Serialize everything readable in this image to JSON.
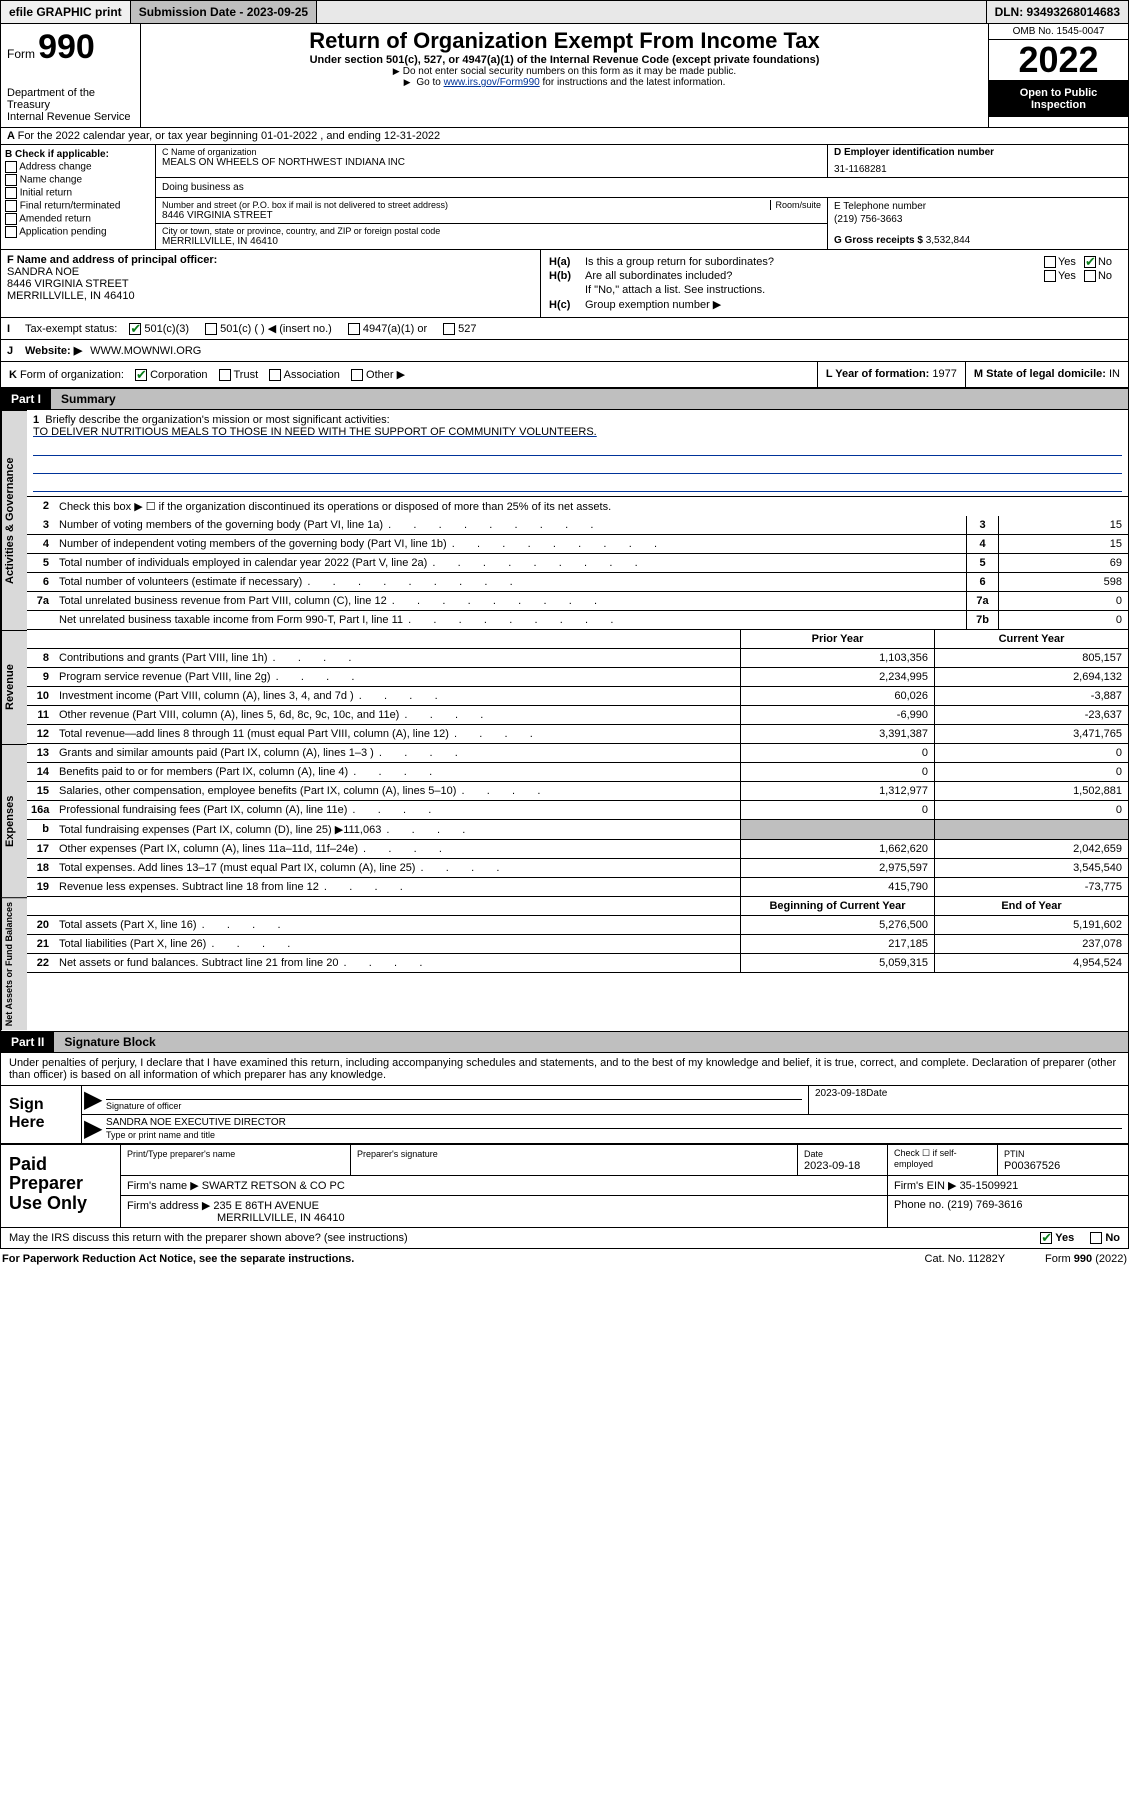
{
  "topbar": {
    "efile": "efile GRAPHIC print",
    "subdate_label": "Submission Date - 2023-09-25",
    "dln": "DLN: 93493268014683"
  },
  "header": {
    "form_prefix": "Form",
    "form_number": "990",
    "dept": "Department of the Treasury",
    "irs": "Internal Revenue Service",
    "title": "Return of Organization Exempt From Income Tax",
    "subtitle": "Under section 501(c), 527, or 4947(a)(1) of the Internal Revenue Code (except private foundations)",
    "note1": "Do not enter social security numbers on this form as it may be made public.",
    "note2_prefix": "Go to ",
    "note2_link": "www.irs.gov/Form990",
    "note2_suffix": " for instructions and the latest information.",
    "omb": "OMB No. 1545-0047",
    "year": "2022",
    "inspection1": "Open to Public",
    "inspection2": "Inspection"
  },
  "row_a": "For the 2022 calendar year, or tax year beginning 01-01-2022    , and ending 12-31-2022",
  "col_b": {
    "hdr": "B Check if applicable:",
    "items": [
      "Address change",
      "Name change",
      "Initial return",
      "Final return/terminated",
      "Amended return",
      "Application pending"
    ]
  },
  "section_c": {
    "name_label": "C Name of organization",
    "name": "MEALS ON WHEELS OF NORTHWEST INDIANA INC",
    "dba": "Doing business as",
    "street_label": "Number and street (or P.O. box if mail is not delivered to street address)",
    "roomsuite": "Room/suite",
    "street": "8446 VIRGINIA STREET",
    "citylabel": "City or town, state or province, country, and ZIP or foreign postal code",
    "city": "MERRILLVILLE, IN   46410"
  },
  "section_d": {
    "ein_label": "D Employer identification number",
    "ein": "31-1168281",
    "phone_label": "E Telephone number",
    "phone": "(219) 756-3663",
    "gross_label": "G Gross receipts $",
    "gross": "3,532,844"
  },
  "section_f": {
    "label": "F Name and address of principal officer:",
    "name": "SANDRA NOE",
    "street": "8446 VIRGINIA STREET",
    "city": "MERRILLVILLE, IN   46410"
  },
  "section_h": {
    "a_label": "H(a)",
    "a_text": "Is this a group return for subordinates?",
    "b_label": "H(b)",
    "b_text": "Are all subordinates included?",
    "b_note": "If \"No,\" attach a list. See instructions.",
    "c_label": "H(c)",
    "c_text": "Group exemption number ▶",
    "yes": "Yes",
    "no": "No"
  },
  "row_i": {
    "label": "I",
    "text": "Tax-exempt status:",
    "opts": [
      "501(c)(3)",
      "501(c) (   ) ◀ (insert no.)",
      "4947(a)(1) or",
      "527"
    ]
  },
  "row_j": {
    "label": "J",
    "text": "Website: ▶",
    "value": "WWW.MOWNWI.ORG"
  },
  "row_k": {
    "label": "K",
    "text": "Form of organization:",
    "opts": [
      "Corporation",
      "Trust",
      "Association",
      "Other ▶"
    ],
    "l_label": "L Year of formation:",
    "l_value": "1977",
    "m_label": "M State of legal domicile:",
    "m_value": "IN"
  },
  "part1": {
    "num": "Part I",
    "title": "Summary",
    "briefly_n": "1",
    "briefly": "Briefly describe the organization's mission or most significant activities:",
    "mission": "TO DELIVER NUTRITIOUS MEALS TO THOSE IN NEED WITH THE SUPPORT OF COMMUNITY VOLUNTEERS.",
    "line2_n": "2",
    "line2": "Check this box ▶ ☐  if the organization discontinued its operations or disposed of more than 25% of its net assets.",
    "gov_tab": "Activities & Governance",
    "gov_rows": [
      {
        "n": "3",
        "d": "Number of voting members of the governing body (Part VI, line 1a)",
        "k": "3",
        "v": "15"
      },
      {
        "n": "4",
        "d": "Number of independent voting members of the governing body (Part VI, line 1b)",
        "k": "4",
        "v": "15"
      },
      {
        "n": "5",
        "d": "Total number of individuals employed in calendar year 2022 (Part V, line 2a)",
        "k": "5",
        "v": "69"
      },
      {
        "n": "6",
        "d": "Total number of volunteers (estimate if necessary)",
        "k": "6",
        "v": "598"
      },
      {
        "n": "7a",
        "d": "Total unrelated business revenue from Part VIII, column (C), line 12",
        "k": "7a",
        "v": "0"
      },
      {
        "n": "",
        "d": "Net unrelated business taxable income from Form 990-T, Part I, line 11",
        "k": "7b",
        "v": "0"
      }
    ],
    "rev_tab": "Revenue",
    "prior": "Prior Year",
    "current": "Current Year",
    "rev_rows": [
      {
        "n": "8",
        "d": "Contributions and grants (Part VIII, line 1h)",
        "v1": "1,103,356",
        "v2": "805,157"
      },
      {
        "n": "9",
        "d": "Program service revenue (Part VIII, line 2g)",
        "v1": "2,234,995",
        "v2": "2,694,132"
      },
      {
        "n": "10",
        "d": "Investment income (Part VIII, column (A), lines 3, 4, and 7d )",
        "v1": "60,026",
        "v2": "-3,887"
      },
      {
        "n": "11",
        "d": "Other revenue (Part VIII, column (A), lines 5, 6d, 8c, 9c, 10c, and 11e)",
        "v1": "-6,990",
        "v2": "-23,637"
      },
      {
        "n": "12",
        "d": "Total revenue—add lines 8 through 11 (must equal Part VIII, column (A), line 12)",
        "v1": "3,391,387",
        "v2": "3,471,765"
      }
    ],
    "exp_tab": "Expenses",
    "exp_rows": [
      {
        "n": "13",
        "d": "Grants and similar amounts paid (Part IX, column (A), lines 1–3 )",
        "v1": "0",
        "v2": "0"
      },
      {
        "n": "14",
        "d": "Benefits paid to or for members (Part IX, column (A), line 4)",
        "v1": "0",
        "v2": "0"
      },
      {
        "n": "15",
        "d": "Salaries, other compensation, employee benefits (Part IX, column (A), lines 5–10)",
        "v1": "1,312,977",
        "v2": "1,502,881"
      },
      {
        "n": "16a",
        "d": "Professional fundraising fees (Part IX, column (A), line 11e)",
        "v1": "0",
        "v2": "0"
      },
      {
        "n": "b",
        "d": "Total fundraising expenses (Part IX, column (D), line 25) ▶111,063",
        "v1": "grey",
        "v2": "grey"
      },
      {
        "n": "17",
        "d": "Other expenses (Part IX, column (A), lines 11a–11d, 11f–24e)",
        "v1": "1,662,620",
        "v2": "2,042,659"
      },
      {
        "n": "18",
        "d": "Total expenses. Add lines 13–17 (must equal Part IX, column (A), line 25)",
        "v1": "2,975,597",
        "v2": "3,545,540"
      },
      {
        "n": "19",
        "d": "Revenue less expenses. Subtract line 18 from line 12",
        "v1": "415,790",
        "v2": "-73,775"
      }
    ],
    "na_tab": "Net Assets or Fund Balances",
    "begin": "Beginning of Current Year",
    "end": "End of Year",
    "na_rows": [
      {
        "n": "20",
        "d": "Total assets (Part X, line 16)",
        "v1": "5,276,500",
        "v2": "5,191,602"
      },
      {
        "n": "21",
        "d": "Total liabilities (Part X, line 26)",
        "v1": "217,185",
        "v2": "237,078"
      },
      {
        "n": "22",
        "d": "Net assets or fund balances. Subtract line 21 from line 20",
        "v1": "5,059,315",
        "v2": "4,954,524"
      }
    ]
  },
  "part2": {
    "num": "Part II",
    "title": "Signature Block",
    "penalty": "Under penalties of perjury, I declare that I have examined this return, including accompanying schedules and statements, and to the best of my knowledge and belief, it is true, correct, and complete. Declaration of preparer (other than officer) is based on all information of which preparer has any knowledge.",
    "sign_here": "Sign Here",
    "sig_officer_label": "Signature of officer",
    "sig_date": "2023-09-18",
    "date_label": "Date",
    "officer_name": "SANDRA NOE  EXECUTIVE DIRECTOR",
    "name_label": "Type or print name and title"
  },
  "preparer": {
    "label": "Paid Preparer Use Only",
    "print_name_label": "Print/Type preparer's name",
    "sig_label": "Preparer's signature",
    "date_label": "Date",
    "date": "2023-09-18",
    "check_label": "Check ☐ if self-employed",
    "ptin_label": "PTIN",
    "ptin": "P00367526",
    "firm_name_label": "Firm's name    ▶",
    "firm_name": "SWARTZ RETSON & CO PC",
    "firm_ein_label": "Firm's EIN ▶",
    "firm_ein": "35-1509921",
    "firm_addr_label": "Firm's address ▶",
    "firm_addr1": "235 E 86TH AVENUE",
    "firm_addr2": "MERRILLVILLE, IN   46410",
    "phone_label": "Phone no.",
    "phone": "(219) 769-3616"
  },
  "footer": {
    "discuss": "May the IRS discuss this return with the preparer shown above? (see instructions)",
    "yes": "Yes",
    "no": "No",
    "paperwork": "For Paperwork Reduction Act Notice, see the separate instructions.",
    "cat": "Cat. No. 11282Y",
    "formref": "Form 990 (2022)"
  }
}
